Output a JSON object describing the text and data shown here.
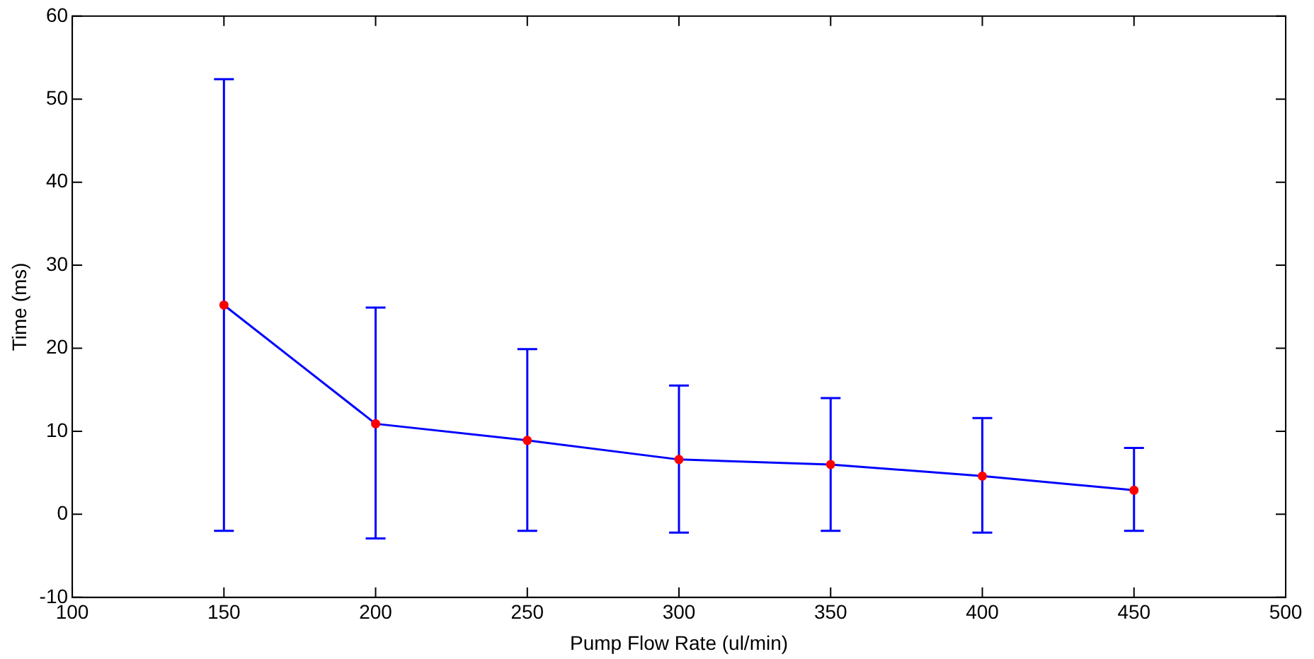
{
  "chart_data": {
    "type": "line",
    "xlabel": "Pump Flow Rate (ul/min)",
    "ylabel": "Time (ms)",
    "x": [
      150,
      200,
      250,
      300,
      350,
      400,
      450
    ],
    "series": [
      {
        "color": "#0000ff",
        "values": [
          25.2,
          10.9,
          8.9,
          6.6,
          6.0,
          4.6,
          2.9
        ],
        "errors": [
          [
            -2.0,
            52.4
          ],
          [
            -2.9,
            24.9
          ],
          [
            -2.0,
            19.9
          ],
          [
            -2.2,
            15.5
          ],
          [
            -2.0,
            14.0
          ],
          [
            -2.2,
            11.6
          ],
          [
            -2.0,
            8.0
          ]
        ]
      }
    ],
    "marker": "circle",
    "xlim": [
      100,
      500
    ],
    "xticks": [
      100,
      150,
      200,
      250,
      300,
      350,
      400,
      450,
      500
    ],
    "ylim": [
      -10,
      60
    ],
    "yticks": [
      -10,
      0,
      10,
      20,
      30,
      40,
      50,
      60
    ],
    "grid": false,
    "legend": false
  }
}
